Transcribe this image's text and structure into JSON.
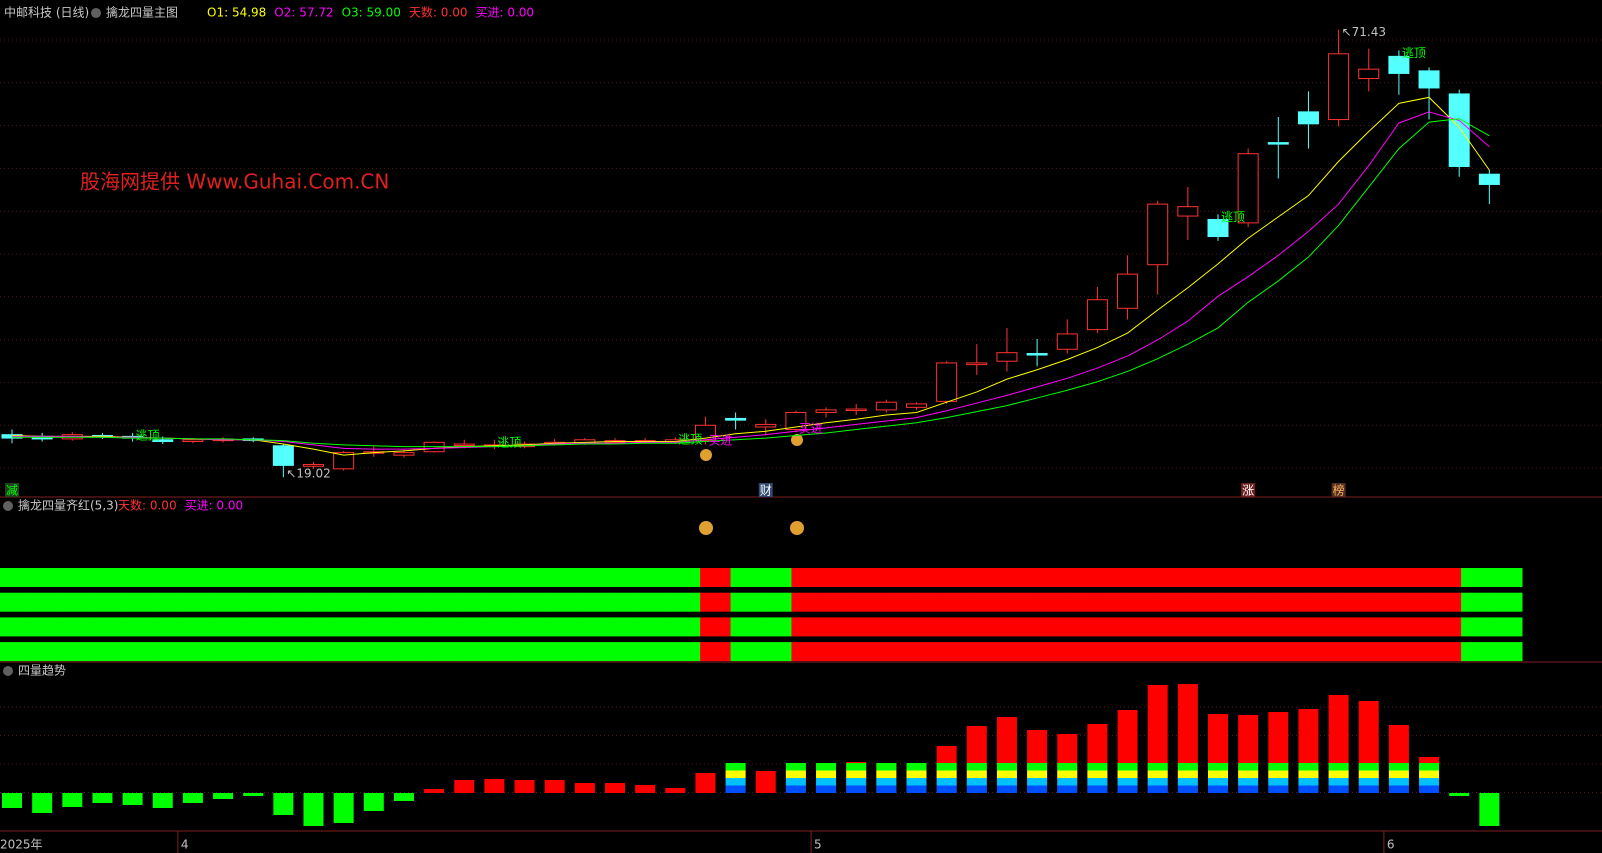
{
  "chart_data": [
    {
      "type": "candlestick",
      "title": "中邮科技 (日线)",
      "subtitle": "擒龙四量主图",
      "header_items": [
        {
          "text": "天数: 0.00",
          "color": "#ff3232"
        },
        {
          "text": "买进: 0.00",
          "color": "#ff00ff"
        }
      ],
      "ylim": [
        16.7,
        74.9
      ],
      "up_color": "#ff3232",
      "down_color": "#54ffff",
      "ohlc": [
        [
          24.0,
          23.6,
          24.6,
          23.0
        ],
        [
          23.8,
          23.5,
          24.2,
          23.2
        ],
        [
          23.5,
          24.0,
          24.3,
          23.3
        ],
        [
          23.9,
          23.8,
          24.2,
          23.5
        ],
        [
          23.8,
          23.6,
          24.2,
          23.2
        ],
        [
          23.4,
          23.2,
          23.8,
          22.9
        ],
        [
          23.2,
          23.4,
          23.6,
          23.0
        ],
        [
          23.3,
          23.5,
          23.7,
          23.1
        ],
        [
          23.5,
          23.4,
          23.7,
          23.1
        ],
        [
          22.7,
          20.4,
          22.9,
          19.02
        ],
        [
          20.3,
          20.5,
          20.8,
          20.0
        ],
        [
          20.0,
          21.9,
          22.1,
          19.8
        ],
        [
          21.9,
          22.0,
          22.7,
          21.4
        ],
        [
          21.6,
          21.9,
          22.2,
          21.3
        ],
        [
          22.0,
          23.1,
          23.2,
          21.9
        ],
        [
          22.8,
          22.9,
          23.4,
          22.4
        ],
        [
          22.7,
          22.8,
          23.4,
          22.3
        ],
        [
          22.6,
          22.9,
          23.2,
          22.4
        ],
        [
          22.9,
          23.1,
          23.5,
          22.7
        ],
        [
          23.0,
          23.4,
          23.6,
          22.8
        ],
        [
          23.1,
          23.3,
          23.6,
          22.9
        ],
        [
          23.1,
          23.3,
          23.6,
          22.9
        ],
        [
          23.2,
          23.4,
          23.7,
          22.9
        ],
        [
          23.3,
          25.1,
          26.1,
          22.9
        ],
        [
          25.9,
          25.7,
          26.6,
          24.6
        ],
        [
          24.9,
          25.2,
          25.8,
          23.9
        ],
        [
          24.6,
          26.6,
          26.8,
          24.3
        ],
        [
          26.6,
          26.9,
          27.2,
          26.0
        ],
        [
          26.9,
          27.0,
          27.6,
          26.3
        ],
        [
          26.9,
          27.8,
          28.1,
          26.6
        ],
        [
          27.2,
          27.6,
          27.8,
          26.9
        ],
        [
          27.9,
          32.4,
          32.6,
          27.6
        ],
        [
          32.2,
          32.4,
          34.6,
          31.0
        ],
        [
          32.6,
          33.6,
          36.5,
          31.4
        ],
        [
          33.5,
          33.5,
          35.2,
          32.0
        ],
        [
          34.0,
          35.8,
          37.5,
          33.5
        ],
        [
          36.3,
          39.8,
          41.3,
          35.9
        ],
        [
          38.8,
          42.8,
          45.0,
          37.5
        ],
        [
          43.9,
          51.0,
          51.4,
          40.4
        ],
        [
          49.6,
          50.7,
          53.0,
          46.8
        ],
        [
          49.2,
          47.2,
          49.8,
          46.7
        ],
        [
          48.8,
          56.9,
          57.5,
          48.3
        ],
        [
          58.2,
          58.1,
          61.2,
          54.0
        ],
        [
          61.8,
          60.4,
          64.2,
          57.5
        ],
        [
          60.9,
          68.6,
          71.43,
          60.1
        ],
        [
          65.7,
          66.8,
          69.2,
          64.2
        ],
        [
          68.3,
          66.3,
          69.0,
          63.8
        ],
        [
          66.6,
          64.6,
          67.0,
          60.9
        ],
        [
          63.9,
          55.4,
          64.4,
          54.2
        ],
        [
          54.5,
          53.3,
          55.0,
          51.0
        ]
      ],
      "series": [
        {
          "label": "O1: 54.98",
          "color": "#ffff00",
          "values": [
            23.9,
            23.8,
            23.8,
            23.8,
            23.7,
            23.6,
            23.5,
            23.4,
            23.4,
            22.9,
            22.3,
            21.6,
            21.9,
            22.1,
            22.4,
            22.6,
            22.7,
            22.8,
            23.0,
            23.1,
            23.2,
            23.2,
            23.2,
            23.6,
            24.1,
            24.4,
            24.9,
            25.4,
            25.8,
            26.3,
            26.6,
            27.8,
            29.0,
            30.5,
            31.6,
            32.8,
            34.2,
            35.9,
            38.6,
            41.2,
            44.0,
            47.0,
            49.5,
            52.0,
            56.0,
            59.5,
            62.8,
            63.5,
            60.0,
            54.98
          ]
        },
        {
          "label": "O2: 57.72",
          "color": "#ff00ff",
          "values": [
            23.8,
            23.8,
            23.8,
            23.7,
            23.7,
            23.6,
            23.5,
            23.4,
            23.4,
            23.2,
            22.8,
            22.4,
            22.3,
            22.3,
            22.4,
            22.5,
            22.6,
            22.7,
            22.9,
            23.0,
            23.0,
            23.1,
            23.1,
            23.4,
            23.7,
            24.0,
            24.4,
            24.8,
            25.2,
            25.6,
            26.0,
            26.8,
            27.7,
            28.6,
            29.6,
            30.6,
            31.8,
            33.2,
            35.1,
            37.3,
            40.2,
            42.5,
            45.0,
            47.8,
            51.0,
            55.5,
            60.5,
            61.8,
            60.8,
            57.72
          ]
        },
        {
          "label": "O3: 59.00",
          "color": "#00ff00",
          "values": [
            23.7,
            23.7,
            23.7,
            23.7,
            23.6,
            23.6,
            23.5,
            23.5,
            23.4,
            23.3,
            23.0,
            22.8,
            22.7,
            22.6,
            22.6,
            22.6,
            22.6,
            22.7,
            22.8,
            22.9,
            22.9,
            23.0,
            23.0,
            23.2,
            23.4,
            23.6,
            23.9,
            24.2,
            24.6,
            25.0,
            25.4,
            26.0,
            26.7,
            27.4,
            28.3,
            29.2,
            30.2,
            31.4,
            32.9,
            34.6,
            36.5,
            39.5,
            42.0,
            44.8,
            48.5,
            53.0,
            57.5,
            60.6,
            61.0,
            59.0
          ]
        }
      ],
      "annotations": [
        {
          "text": "↖71.43",
          "index": 44,
          "anchor": "high",
          "color": "#c0c0c0"
        },
        {
          "text": "↖19.02",
          "index": 9,
          "anchor": "low",
          "color": "#c0c0c0"
        },
        {
          "text": "逃顶",
          "index": 4,
          "anchor": "high",
          "color": "#00ff00"
        },
        {
          "text": "逃顶",
          "index": 16,
          "anchor": "high",
          "color": "#00ff00"
        },
        {
          "text": "逃顶",
          "index": 22,
          "anchor": "high",
          "color": "#00ff00"
        },
        {
          "text": "逃顶",
          "index": 40,
          "anchor": "high",
          "color": "#00ff00"
        },
        {
          "text": "逃顶",
          "index": 46,
          "anchor": "high",
          "color": "#00ff00"
        },
        {
          "text": "买进",
          "index": 23,
          "anchor": "low",
          "color": "#ff00ff"
        },
        {
          "text": "买进",
          "index": 26,
          "anchor": "low",
          "color": "#ff00ff"
        }
      ],
      "markers": [
        {
          "text": "减",
          "index": 0,
          "color": "#00ff00",
          "background": "#204020"
        },
        {
          "text": "财",
          "index": 25,
          "color": "#ffffff",
          "background": "#304870"
        },
        {
          "text": "涨",
          "index": 41,
          "color": "#ffffff",
          "background": "#702020"
        },
        {
          "text": "榜",
          "index": 44,
          "color": "#ffb060",
          "background": "#503020"
        }
      ],
      "watermark": "股海网提供 Www.Guhai.Com.CN"
    },
    {
      "type": "band",
      "title": "擒龙四量齐红(5,3)",
      "header_items": [
        {
          "text": "天数: 0.00",
          "color": "#ff3232"
        },
        {
          "text": "买进: 0.00",
          "color": "#ff00ff"
        }
      ],
      "rows": 4,
      "colors": [
        "#00ff00",
        "#00ff00",
        "#00ff00",
        "#00ff00",
        "#00ff00",
        "#00ff00",
        "#00ff00",
        "#00ff00",
        "#00ff00",
        "#00ff00",
        "#00ff00",
        "#00ff00",
        "#00ff00",
        "#00ff00",
        "#00ff00",
        "#00ff00",
        "#00ff00",
        "#00ff00",
        "#00ff00",
        "#00ff00",
        "#00ff00",
        "#00ff00",
        "#00ff00",
        "#ff0000",
        "#00ff00",
        "#00ff00",
        "#ff0000",
        "#ff0000",
        "#ff0000",
        "#ff0000",
        "#ff0000",
        "#ff0000",
        "#ff0000",
        "#ff0000",
        "#ff0000",
        "#ff0000",
        "#ff0000",
        "#ff0000",
        "#ff0000",
        "#ff0000",
        "#ff0000",
        "#ff0000",
        "#ff0000",
        "#ff0000",
        "#ff0000",
        "#ff0000",
        "#ff0000",
        "#ff0000",
        "#00ff00",
        "#00ff00"
      ]
    },
    {
      "type": "bar",
      "title": "四量趋势",
      "ylim": [
        -37,
        113
      ],
      "up_color": "#ff0000",
      "down_color": "#00ff00",
      "values": [
        -15,
        -20,
        -14,
        -10,
        -12,
        -15,
        -10,
        -6,
        -3,
        -22,
        -33,
        -30,
        -18,
        -8,
        4,
        13,
        14,
        13,
        13,
        10,
        10,
        8,
        5,
        20,
        29,
        22,
        23,
        28,
        31,
        30,
        23,
        47,
        67,
        76,
        63,
        59,
        69,
        83,
        108,
        109,
        79,
        78,
        81,
        84,
        98,
        92,
        68,
        36,
        -3,
        -33
      ],
      "x_labels": [
        {
          "text": "2025年",
          "index": 0
        },
        {
          "text": "4",
          "index": 6
        },
        {
          "text": "5",
          "index": 27
        },
        {
          "text": "6",
          "index": 46
        }
      ]
    }
  ]
}
